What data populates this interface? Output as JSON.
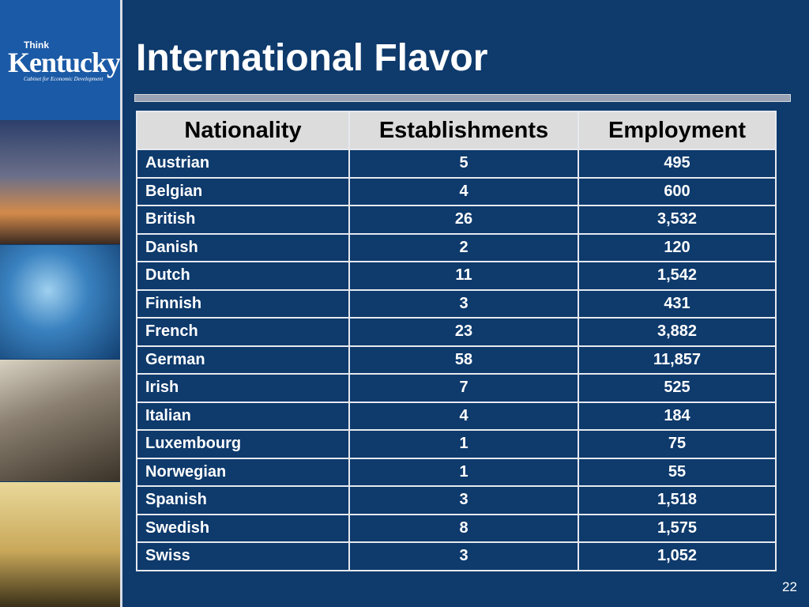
{
  "logo": {
    "small": "Think",
    "name": "Kentucky",
    "tagline": "Cabinet for Economic Development"
  },
  "title": "International Flavor",
  "table": {
    "header": [
      "Nationality",
      "Establishments",
      "Employment"
    ],
    "rows": [
      [
        "Austrian",
        "5",
        "495"
      ],
      [
        "Belgian",
        "4",
        "600"
      ],
      [
        "British",
        "26",
        "3,532"
      ],
      [
        "Danish",
        "2",
        "120"
      ],
      [
        "Dutch",
        "11",
        "1,542"
      ],
      [
        "Finnish",
        "3",
        "431"
      ],
      [
        "French",
        "23",
        "3,882"
      ],
      [
        "German",
        "58",
        "11,857"
      ],
      [
        "Irish",
        "7",
        "525"
      ],
      [
        "Italian",
        "4",
        "184"
      ],
      [
        "Luxembourg",
        "1",
        "75"
      ],
      [
        "Norwegian",
        "1",
        "55"
      ],
      [
        "Spanish",
        "3",
        "1,518"
      ],
      [
        "Swedish",
        "8",
        "1,575"
      ],
      [
        "Swiss",
        "3",
        "1,052"
      ]
    ]
  },
  "page_number": "22"
}
